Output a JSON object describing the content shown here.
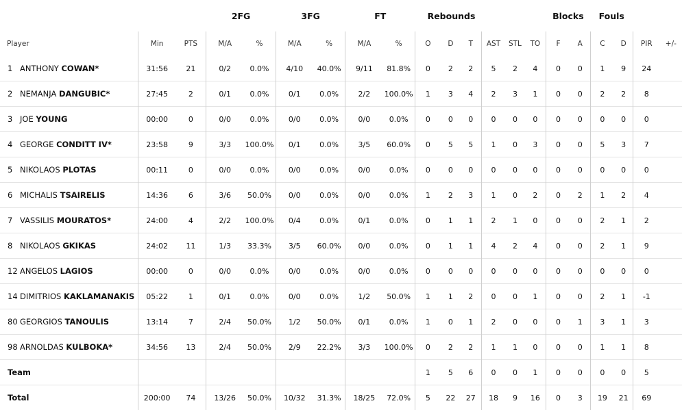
{
  "groups": {
    "fg2": "2FG",
    "fg3": "3FG",
    "ft": "FT",
    "rebounds": "Rebounds",
    "blocks": "Blocks",
    "fouls": "Fouls"
  },
  "headers": {
    "player": "Player",
    "min": "Min",
    "pts": "PTS",
    "fg2_ma": "M/A",
    "fg2_pct": "%",
    "fg3_ma": "M/A",
    "fg3_pct": "%",
    "ft_ma": "M/A",
    "ft_pct": "%",
    "o": "O",
    "d": "D",
    "t": "T",
    "ast": "AST",
    "stl": "STL",
    "to": "TO",
    "blk_f": "F",
    "blk_a": "A",
    "fl_c": "C",
    "fl_d": "D",
    "pir": "PIR",
    "pm": "+/-"
  },
  "players": [
    {
      "num": "1",
      "first": "ANTHONY",
      "last": "COWAN*",
      "min": "31:56",
      "pts": "21",
      "fg2": "0/2",
      "fg2p": "0.0%",
      "fg3": "4/10",
      "fg3p": "40.0%",
      "ft": "9/11",
      "ftp": "81.8%",
      "o": "0",
      "d": "2",
      "t": "2",
      "ast": "5",
      "stl": "2",
      "to": "4",
      "bf": "0",
      "ba": "0",
      "fc": "1",
      "fd": "9",
      "pir": "24",
      "pm": ""
    },
    {
      "num": "2",
      "first": "NEMANJA",
      "last": "DANGUBIC*",
      "min": "27:45",
      "pts": "2",
      "fg2": "0/1",
      "fg2p": "0.0%",
      "fg3": "0/1",
      "fg3p": "0.0%",
      "ft": "2/2",
      "ftp": "100.0%",
      "o": "1",
      "d": "3",
      "t": "4",
      "ast": "2",
      "stl": "3",
      "to": "1",
      "bf": "0",
      "ba": "0",
      "fc": "2",
      "fd": "2",
      "pir": "8",
      "pm": ""
    },
    {
      "num": "3",
      "first": "JOE",
      "last": "YOUNG",
      "min": "00:00",
      "pts": "0",
      "fg2": "0/0",
      "fg2p": "0.0%",
      "fg3": "0/0",
      "fg3p": "0.0%",
      "ft": "0/0",
      "ftp": "0.0%",
      "o": "0",
      "d": "0",
      "t": "0",
      "ast": "0",
      "stl": "0",
      "to": "0",
      "bf": "0",
      "ba": "0",
      "fc": "0",
      "fd": "0",
      "pir": "0",
      "pm": ""
    },
    {
      "num": "4",
      "first": "GEORGE",
      "last": "CONDITT IV*",
      "min": "23:58",
      "pts": "9",
      "fg2": "3/3",
      "fg2p": "100.0%",
      "fg3": "0/1",
      "fg3p": "0.0%",
      "ft": "3/5",
      "ftp": "60.0%",
      "o": "0",
      "d": "5",
      "t": "5",
      "ast": "1",
      "stl": "0",
      "to": "3",
      "bf": "0",
      "ba": "0",
      "fc": "5",
      "fd": "3",
      "pir": "7",
      "pm": ""
    },
    {
      "num": "5",
      "first": "NIKOLAOS",
      "last": "PLOTAS",
      "min": "00:11",
      "pts": "0",
      "fg2": "0/0",
      "fg2p": "0.0%",
      "fg3": "0/0",
      "fg3p": "0.0%",
      "ft": "0/0",
      "ftp": "0.0%",
      "o": "0",
      "d": "0",
      "t": "0",
      "ast": "0",
      "stl": "0",
      "to": "0",
      "bf": "0",
      "ba": "0",
      "fc": "0",
      "fd": "0",
      "pir": "0",
      "pm": ""
    },
    {
      "num": "6",
      "first": "MICHALIS",
      "last": "TSAIRELIS",
      "min": "14:36",
      "pts": "6",
      "fg2": "3/6",
      "fg2p": "50.0%",
      "fg3": "0/0",
      "fg3p": "0.0%",
      "ft": "0/0",
      "ftp": "0.0%",
      "o": "1",
      "d": "2",
      "t": "3",
      "ast": "1",
      "stl": "0",
      "to": "2",
      "bf": "0",
      "ba": "2",
      "fc": "1",
      "fd": "2",
      "pir": "4",
      "pm": ""
    },
    {
      "num": "7",
      "first": "VASSILIS",
      "last": "MOURATOS*",
      "min": "24:00",
      "pts": "4",
      "fg2": "2/2",
      "fg2p": "100.0%",
      "fg3": "0/4",
      "fg3p": "0.0%",
      "ft": "0/1",
      "ftp": "0.0%",
      "o": "0",
      "d": "1",
      "t": "1",
      "ast": "2",
      "stl": "1",
      "to": "0",
      "bf": "0",
      "ba": "0",
      "fc": "2",
      "fd": "1",
      "pir": "2",
      "pm": ""
    },
    {
      "num": "8",
      "first": "NIKOLAOS",
      "last": "GKIKAS",
      "min": "24:02",
      "pts": "11",
      "fg2": "1/3",
      "fg2p": "33.3%",
      "fg3": "3/5",
      "fg3p": "60.0%",
      "ft": "0/0",
      "ftp": "0.0%",
      "o": "0",
      "d": "1",
      "t": "1",
      "ast": "4",
      "stl": "2",
      "to": "4",
      "bf": "0",
      "ba": "0",
      "fc": "2",
      "fd": "1",
      "pir": "9",
      "pm": ""
    },
    {
      "num": "12",
      "first": "ANGELOS",
      "last": "LAGIOS",
      "min": "00:00",
      "pts": "0",
      "fg2": "0/0",
      "fg2p": "0.0%",
      "fg3": "0/0",
      "fg3p": "0.0%",
      "ft": "0/0",
      "ftp": "0.0%",
      "o": "0",
      "d": "0",
      "t": "0",
      "ast": "0",
      "stl": "0",
      "to": "0",
      "bf": "0",
      "ba": "0",
      "fc": "0",
      "fd": "0",
      "pir": "0",
      "pm": ""
    },
    {
      "num": "14",
      "first": "DIMITRIOS",
      "last": "KAKLAMANAKIS",
      "min": "05:22",
      "pts": "1",
      "fg2": "0/1",
      "fg2p": "0.0%",
      "fg3": "0/0",
      "fg3p": "0.0%",
      "ft": "1/2",
      "ftp": "50.0%",
      "o": "1",
      "d": "1",
      "t": "2",
      "ast": "0",
      "stl": "0",
      "to": "1",
      "bf": "0",
      "ba": "0",
      "fc": "2",
      "fd": "1",
      "pir": "-1",
      "pm": ""
    },
    {
      "num": "80",
      "first": "GEORGIOS",
      "last": "TANOULIS",
      "min": "13:14",
      "pts": "7",
      "fg2": "2/4",
      "fg2p": "50.0%",
      "fg3": "1/2",
      "fg3p": "50.0%",
      "ft": "0/1",
      "ftp": "0.0%",
      "o": "1",
      "d": "0",
      "t": "1",
      "ast": "2",
      "stl": "0",
      "to": "0",
      "bf": "0",
      "ba": "1",
      "fc": "3",
      "fd": "1",
      "pir": "3",
      "pm": ""
    },
    {
      "num": "98",
      "first": "ARNOLDAS",
      "last": "KULBOKA*",
      "min": "34:56",
      "pts": "13",
      "fg2": "2/4",
      "fg2p": "50.0%",
      "fg3": "2/9",
      "fg3p": "22.2%",
      "ft": "3/3",
      "ftp": "100.0%",
      "o": "0",
      "d": "2",
      "t": "2",
      "ast": "1",
      "stl": "1",
      "to": "0",
      "bf": "0",
      "ba": "0",
      "fc": "1",
      "fd": "1",
      "pir": "8",
      "pm": ""
    }
  ],
  "team": {
    "label": "Team",
    "min": "",
    "pts": "",
    "fg2": "",
    "fg2p": "",
    "fg3": "",
    "fg3p": "",
    "ft": "",
    "ftp": "",
    "o": "1",
    "d": "5",
    "t": "6",
    "ast": "0",
    "stl": "0",
    "to": "1",
    "bf": "0",
    "ba": "0",
    "fc": "0",
    "fd": "0",
    "pir": "5",
    "pm": ""
  },
  "total": {
    "label": "Total",
    "min": "200:00",
    "pts": "74",
    "fg2": "13/26",
    "fg2p": "50.0%",
    "fg3": "10/32",
    "fg3p": "31.3%",
    "ft": "18/25",
    "ftp": "72.0%",
    "o": "5",
    "d": "22",
    "t": "27",
    "ast": "18",
    "stl": "9",
    "to": "16",
    "bf": "0",
    "ba": "3",
    "fc": "19",
    "fd": "21",
    "pir": "69",
    "pm": ""
  }
}
